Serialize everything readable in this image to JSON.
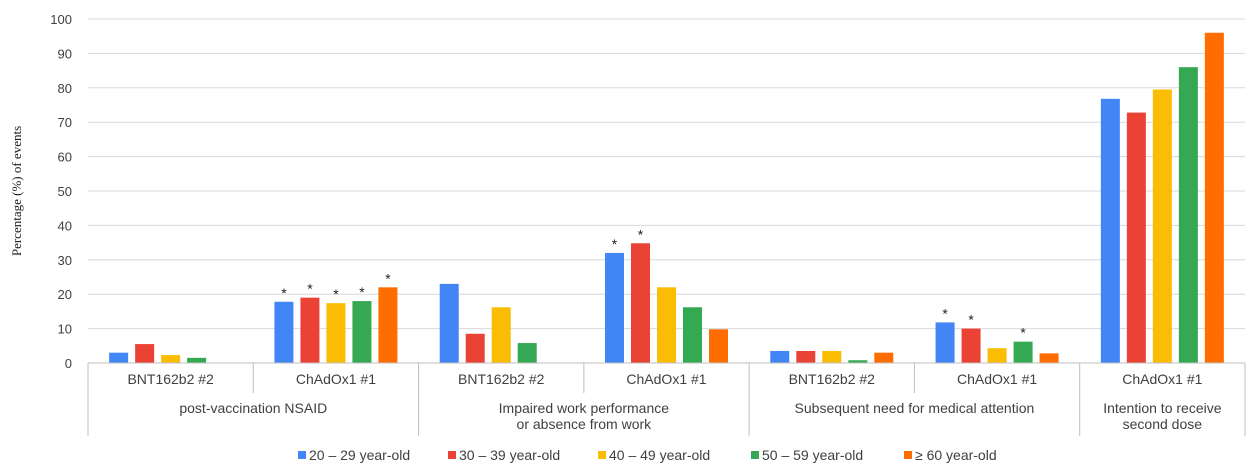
{
  "chart_data": {
    "type": "bar",
    "ylabel": "Percentage (%) of events",
    "ylim": [
      0,
      100
    ],
    "yticks": [
      0,
      10,
      20,
      30,
      40,
      50,
      60,
      70,
      80,
      90,
      100
    ],
    "grid": true,
    "legend_position": "bottom",
    "series": [
      {
        "name": "20 – 29 year-old",
        "color": "#4285F4"
      },
      {
        "name": "30 – 39 year-old",
        "color": "#EA4335"
      },
      {
        "name": "40 – 49 year-old",
        "color": "#FBBC04"
      },
      {
        "name": "50 – 59 year-old",
        "color": "#34A853"
      },
      {
        "name": "≥ 60 year-old",
        "color": "#FF6D01"
      }
    ],
    "groups": [
      {
        "label_lines": [
          "post-vaccination NSAID"
        ],
        "categories": [
          {
            "label": "BNT162b2 #2",
            "values": [
              3,
              5.5,
              2.3,
              1.5,
              null
            ],
            "significant": [
              false,
              false,
              false,
              false,
              false
            ]
          },
          {
            "label": "ChAdOx1 #1",
            "values": [
              17.8,
              19,
              17.4,
              18,
              22
            ],
            "significant": [
              true,
              true,
              true,
              true,
              true
            ]
          }
        ]
      },
      {
        "label_lines": [
          "Impaired work performance",
          "or absence from work"
        ],
        "categories": [
          {
            "label": "BNT162b2 #2",
            "values": [
              23,
              8.5,
              16.2,
              5.8,
              null
            ],
            "significant": [
              false,
              false,
              false,
              false,
              false
            ]
          },
          {
            "label": "ChAdOx1 #1",
            "values": [
              32,
              34.8,
              22,
              16.2,
              9.8
            ],
            "significant": [
              true,
              true,
              false,
              false,
              false
            ]
          }
        ]
      },
      {
        "label_lines": [
          "Subsequent need for medical attention"
        ],
        "categories": [
          {
            "label": "BNT162b2 #2",
            "values": [
              3.5,
              3.5,
              3.5,
              0.8,
              3
            ],
            "significant": [
              false,
              false,
              false,
              false,
              false
            ]
          },
          {
            "label": "ChAdOx1 #1",
            "values": [
              11.8,
              10,
              4.3,
              6.2,
              2.8
            ],
            "significant": [
              true,
              true,
              false,
              true,
              false
            ]
          }
        ]
      },
      {
        "label_lines": [
          "Intention to receive",
          "second dose"
        ],
        "categories": [
          {
            "label": "ChAdOx1 #1",
            "values": [
              76.8,
              72.8,
              79.5,
              86,
              96
            ],
            "significant": [
              false,
              false,
              false,
              false,
              false
            ]
          }
        ]
      }
    ],
    "significance_marker": "*"
  }
}
